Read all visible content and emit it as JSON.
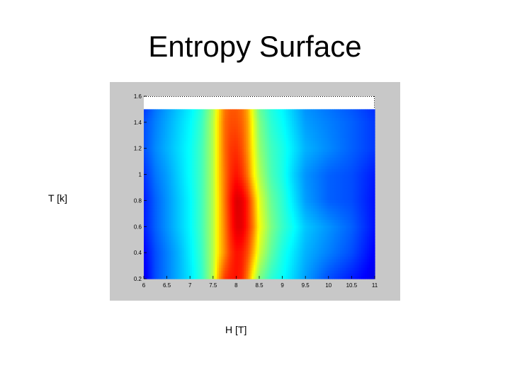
{
  "colors": {
    "frame_background": "#c8c8c8",
    "colormap": "jet"
  },
  "chart_data": {
    "type": "heatmap",
    "title": "Entropy Surface",
    "xlabel": "H [T]",
    "ylabel": "T [k]",
    "xlim": [
      6,
      11
    ],
    "ylim": [
      0.2,
      1.6
    ],
    "x_ticks": [
      "6",
      "6.5",
      "7",
      "7.5",
      "8",
      "8.5",
      "9",
      "9.5",
      "10",
      "10.5",
      "11"
    ],
    "y_ticks": [
      "0.2",
      "0.4",
      "0.6",
      "0.8",
      "1",
      "1.2",
      "1.4",
      "1.6"
    ],
    "data_ymax": 1.5,
    "x": [
      6.0,
      6.25,
      6.5,
      6.75,
      7.0,
      7.25,
      7.5,
      7.625,
      7.75,
      7.875,
      8.0,
      8.125,
      8.25,
      8.375,
      8.5,
      8.75,
      9.0,
      9.25,
      9.5,
      10.0,
      10.5,
      11.0
    ],
    "y": [
      0.2,
      0.4,
      0.6,
      0.8,
      1.0,
      1.2,
      1.4,
      1.5
    ],
    "z": [
      [
        0.1,
        0.2,
        0.25,
        0.3,
        0.35,
        0.42,
        0.55,
        0.72,
        0.82,
        0.85,
        0.86,
        0.84,
        0.75,
        0.6,
        0.5,
        0.42,
        0.38,
        0.33,
        0.28,
        0.2,
        0.15,
        0.1
      ],
      [
        0.12,
        0.2,
        0.25,
        0.3,
        0.36,
        0.43,
        0.55,
        0.66,
        0.74,
        0.82,
        0.86,
        0.85,
        0.8,
        0.7,
        0.58,
        0.47,
        0.4,
        0.35,
        0.3,
        0.25,
        0.2,
        0.12
      ],
      [
        0.15,
        0.22,
        0.27,
        0.32,
        0.37,
        0.44,
        0.55,
        0.66,
        0.75,
        0.84,
        0.9,
        0.9,
        0.84,
        0.75,
        0.62,
        0.5,
        0.43,
        0.38,
        0.32,
        0.27,
        0.22,
        0.14
      ],
      [
        0.15,
        0.22,
        0.27,
        0.32,
        0.37,
        0.44,
        0.55,
        0.66,
        0.76,
        0.85,
        0.91,
        0.9,
        0.84,
        0.73,
        0.6,
        0.48,
        0.42,
        0.35,
        0.28,
        0.22,
        0.2,
        0.14
      ],
      [
        0.17,
        0.24,
        0.28,
        0.33,
        0.38,
        0.44,
        0.55,
        0.67,
        0.76,
        0.83,
        0.86,
        0.83,
        0.76,
        0.64,
        0.55,
        0.45,
        0.4,
        0.33,
        0.27,
        0.22,
        0.2,
        0.15
      ],
      [
        0.2,
        0.26,
        0.3,
        0.34,
        0.38,
        0.44,
        0.55,
        0.67,
        0.77,
        0.82,
        0.83,
        0.8,
        0.73,
        0.62,
        0.52,
        0.44,
        0.4,
        0.35,
        0.3,
        0.26,
        0.22,
        0.18
      ],
      [
        0.2,
        0.25,
        0.29,
        0.33,
        0.37,
        0.43,
        0.55,
        0.67,
        0.77,
        0.8,
        0.8,
        0.78,
        0.72,
        0.6,
        0.5,
        0.42,
        0.38,
        0.33,
        0.28,
        0.25,
        0.22,
        0.18
      ],
      [
        0.18,
        0.24,
        0.28,
        0.32,
        0.36,
        0.42,
        0.54,
        0.66,
        0.76,
        0.79,
        0.79,
        0.77,
        0.71,
        0.58,
        0.48,
        0.41,
        0.37,
        0.32,
        0.27,
        0.24,
        0.21,
        0.17
      ]
    ],
    "grid": false
  }
}
